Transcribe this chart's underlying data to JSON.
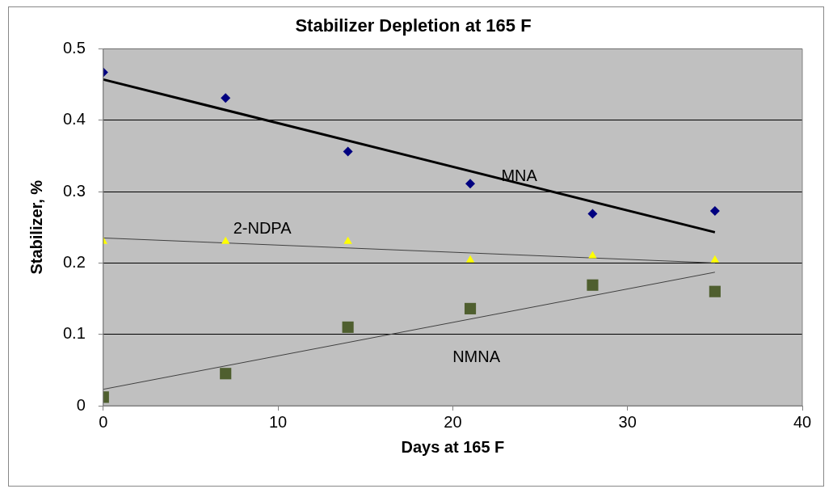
{
  "chart_data": {
    "type": "scatter",
    "title": "Stabilizer Depletion at 165 F",
    "xlabel": "Days at 165 F",
    "ylabel": "Stabilizer, %",
    "xlim": [
      0,
      40
    ],
    "xticks": [
      0,
      10,
      20,
      30,
      40
    ],
    "ylim": [
      0,
      0.5
    ],
    "yticks": [
      0,
      0.1,
      0.2,
      0.3,
      0.4,
      0.5
    ],
    "grid": "y",
    "legend": false,
    "series": [
      {
        "name": "MNA",
        "type": "scatter",
        "marker": "diamond",
        "color": "#000080",
        "x": [
          0,
          7,
          14,
          21,
          28,
          35
        ],
        "values": [
          0.467,
          0.431,
          0.356,
          0.311,
          0.269,
          0.273
        ]
      },
      {
        "name": "2-NDPA",
        "type": "scatter",
        "marker": "triangle",
        "color": "#ffff00",
        "x": [
          0,
          7,
          14,
          21,
          28,
          35
        ],
        "values": [
          0.23,
          0.23,
          0.23,
          0.204,
          0.21,
          0.204
        ]
      },
      {
        "name": "NMNA",
        "type": "scatter",
        "marker": "square",
        "color": "#4f5f2f",
        "x": [
          0,
          7,
          14,
          21,
          28,
          35
        ],
        "values": [
          0.012,
          0.045,
          0.11,
          0.136,
          0.169,
          0.16
        ]
      },
      {
        "type": "line",
        "marker": "none",
        "color": "#000000",
        "x": [
          0,
          35
        ],
        "values": [
          0.457,
          0.243
        ]
      },
      {
        "type": "line",
        "marker": "none",
        "color": "#404040",
        "x": [
          0,
          35
        ],
        "values": [
          0.235,
          0.2
        ]
      },
      {
        "type": "line",
        "marker": "none",
        "color": "#404040",
        "x": [
          0,
          35
        ],
        "values": [
          0.023,
          0.187
        ]
      }
    ]
  }
}
